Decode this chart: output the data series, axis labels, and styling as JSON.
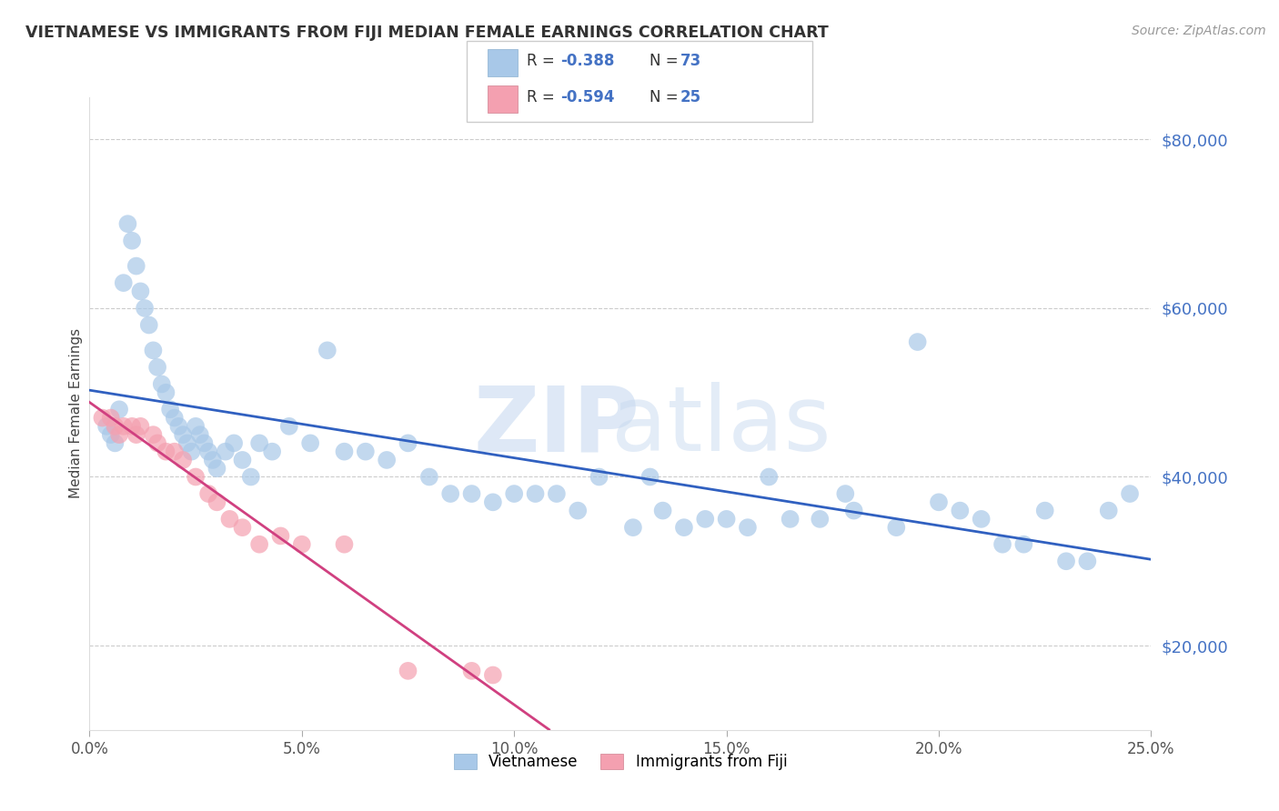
{
  "title": "VIETNAMESE VS IMMIGRANTS FROM FIJI MEDIAN FEMALE EARNINGS CORRELATION CHART",
  "source": "Source: ZipAtlas.com",
  "ylabel": "Median Female Earnings",
  "xlabel_ticks": [
    "0.0%",
    "5.0%",
    "10.0%",
    "15.0%",
    "20.0%",
    "25.0%"
  ],
  "xlabel_vals": [
    0.0,
    5.0,
    10.0,
    15.0,
    20.0,
    25.0
  ],
  "ylabel_ticks": [
    "$20,000",
    "$40,000",
    "$60,000",
    "$80,000"
  ],
  "ylabel_vals": [
    20000,
    40000,
    60000,
    80000
  ],
  "xlim": [
    0.0,
    25.0
  ],
  "ylim": [
    10000,
    85000
  ],
  "legend_labels": [
    "Vietnamese",
    "Immigrants from Fiji"
  ],
  "legend_R": [
    -0.388,
    -0.594
  ],
  "legend_N": [
    73,
    25
  ],
  "blue_color": "#a8c8e8",
  "pink_color": "#f4a0b0",
  "blue_line_color": "#3060c0",
  "pink_line_color": "#d04080",
  "blue_line_color_tick": "#4472c4",
  "watermark_zip": "ZIP",
  "watermark_atlas": "atlas",
  "viet_x": [
    0.4,
    0.5,
    0.6,
    0.7,
    0.8,
    0.9,
    1.0,
    1.1,
    1.2,
    1.3,
    1.4,
    1.5,
    1.6,
    1.7,
    1.8,
    1.9,
    2.0,
    2.1,
    2.2,
    2.3,
    2.4,
    2.5,
    2.6,
    2.7,
    2.8,
    2.9,
    3.0,
    3.2,
    3.4,
    3.6,
    3.8,
    4.0,
    4.3,
    4.7,
    5.2,
    5.6,
    6.0,
    6.5,
    7.0,
    7.5,
    8.0,
    8.5,
    9.0,
    9.5,
    10.0,
    10.5,
    11.0,
    11.5,
    12.0,
    12.8,
    13.5,
    14.0,
    14.5,
    15.0,
    15.5,
    16.5,
    17.2,
    18.0,
    19.0,
    20.0,
    21.0,
    21.5,
    22.0,
    23.0,
    23.5,
    24.0,
    24.5,
    16.0,
    17.8,
    13.2,
    19.5,
    22.5,
    20.5
  ],
  "viet_y": [
    46000,
    45000,
    44000,
    48000,
    63000,
    70000,
    68000,
    65000,
    62000,
    60000,
    58000,
    55000,
    53000,
    51000,
    50000,
    48000,
    47000,
    46000,
    45000,
    44000,
    43000,
    46000,
    45000,
    44000,
    43000,
    42000,
    41000,
    43000,
    44000,
    42000,
    40000,
    44000,
    43000,
    46000,
    44000,
    55000,
    43000,
    43000,
    42000,
    44000,
    40000,
    38000,
    38000,
    37000,
    38000,
    38000,
    38000,
    36000,
    40000,
    34000,
    36000,
    34000,
    35000,
    35000,
    34000,
    35000,
    35000,
    36000,
    34000,
    37000,
    35000,
    32000,
    32000,
    30000,
    30000,
    36000,
    38000,
    40000,
    38000,
    40000,
    56000,
    36000,
    36000
  ],
  "fiji_x": [
    0.3,
    0.5,
    0.6,
    0.7,
    0.8,
    1.0,
    1.1,
    1.2,
    1.5,
    1.6,
    1.8,
    2.0,
    2.2,
    2.5,
    2.8,
    3.0,
    3.3,
    3.6,
    4.0,
    4.5,
    5.0,
    6.0,
    7.5,
    9.0,
    9.5
  ],
  "fiji_y": [
    47000,
    47000,
    46000,
    45000,
    46000,
    46000,
    45000,
    46000,
    45000,
    44000,
    43000,
    43000,
    42000,
    40000,
    38000,
    37000,
    35000,
    34000,
    32000,
    33000,
    32000,
    32000,
    17000,
    17000,
    16500
  ]
}
